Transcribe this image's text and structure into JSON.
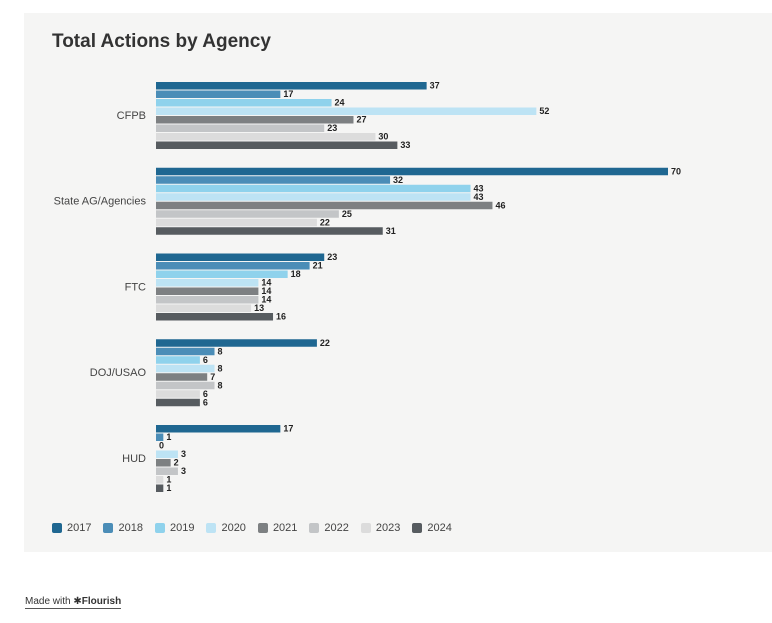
{
  "footer": {
    "made_with": "Made with",
    "brand": "Flourish",
    "brand_mark": "✱"
  },
  "chart_data": {
    "type": "bar",
    "orientation": "horizontal",
    "title": "Total Actions by Agency",
    "xlabel": "",
    "ylabel": "",
    "categories": [
      "CFPB",
      "State AG/Agencies",
      "FTC",
      "DOJ/USAO",
      "HUD"
    ],
    "series": [
      {
        "name": "2017",
        "color": "#1f6791",
        "values": [
          37,
          70,
          23,
          22,
          17
        ]
      },
      {
        "name": "2018",
        "color": "#4b8db7",
        "values": [
          17,
          32,
          21,
          8,
          1
        ]
      },
      {
        "name": "2019",
        "color": "#8fd2ec",
        "values": [
          24,
          43,
          18,
          6,
          0
        ]
      },
      {
        "name": "2020",
        "color": "#bde3f4",
        "values": [
          52,
          43,
          14,
          8,
          3
        ]
      },
      {
        "name": "2021",
        "color": "#7d8082",
        "values": [
          27,
          46,
          14,
          7,
          2
        ]
      },
      {
        "name": "2022",
        "color": "#c3c5c7",
        "values": [
          23,
          25,
          14,
          8,
          3
        ]
      },
      {
        "name": "2023",
        "color": "#dcdcdc",
        "values": [
          30,
          22,
          13,
          6,
          1
        ]
      },
      {
        "name": "2024",
        "color": "#575c60",
        "values": [
          33,
          31,
          16,
          6,
          1
        ]
      }
    ],
    "xlim": [
      0,
      70
    ],
    "grid": false,
    "legend_position": "bottom-left"
  }
}
